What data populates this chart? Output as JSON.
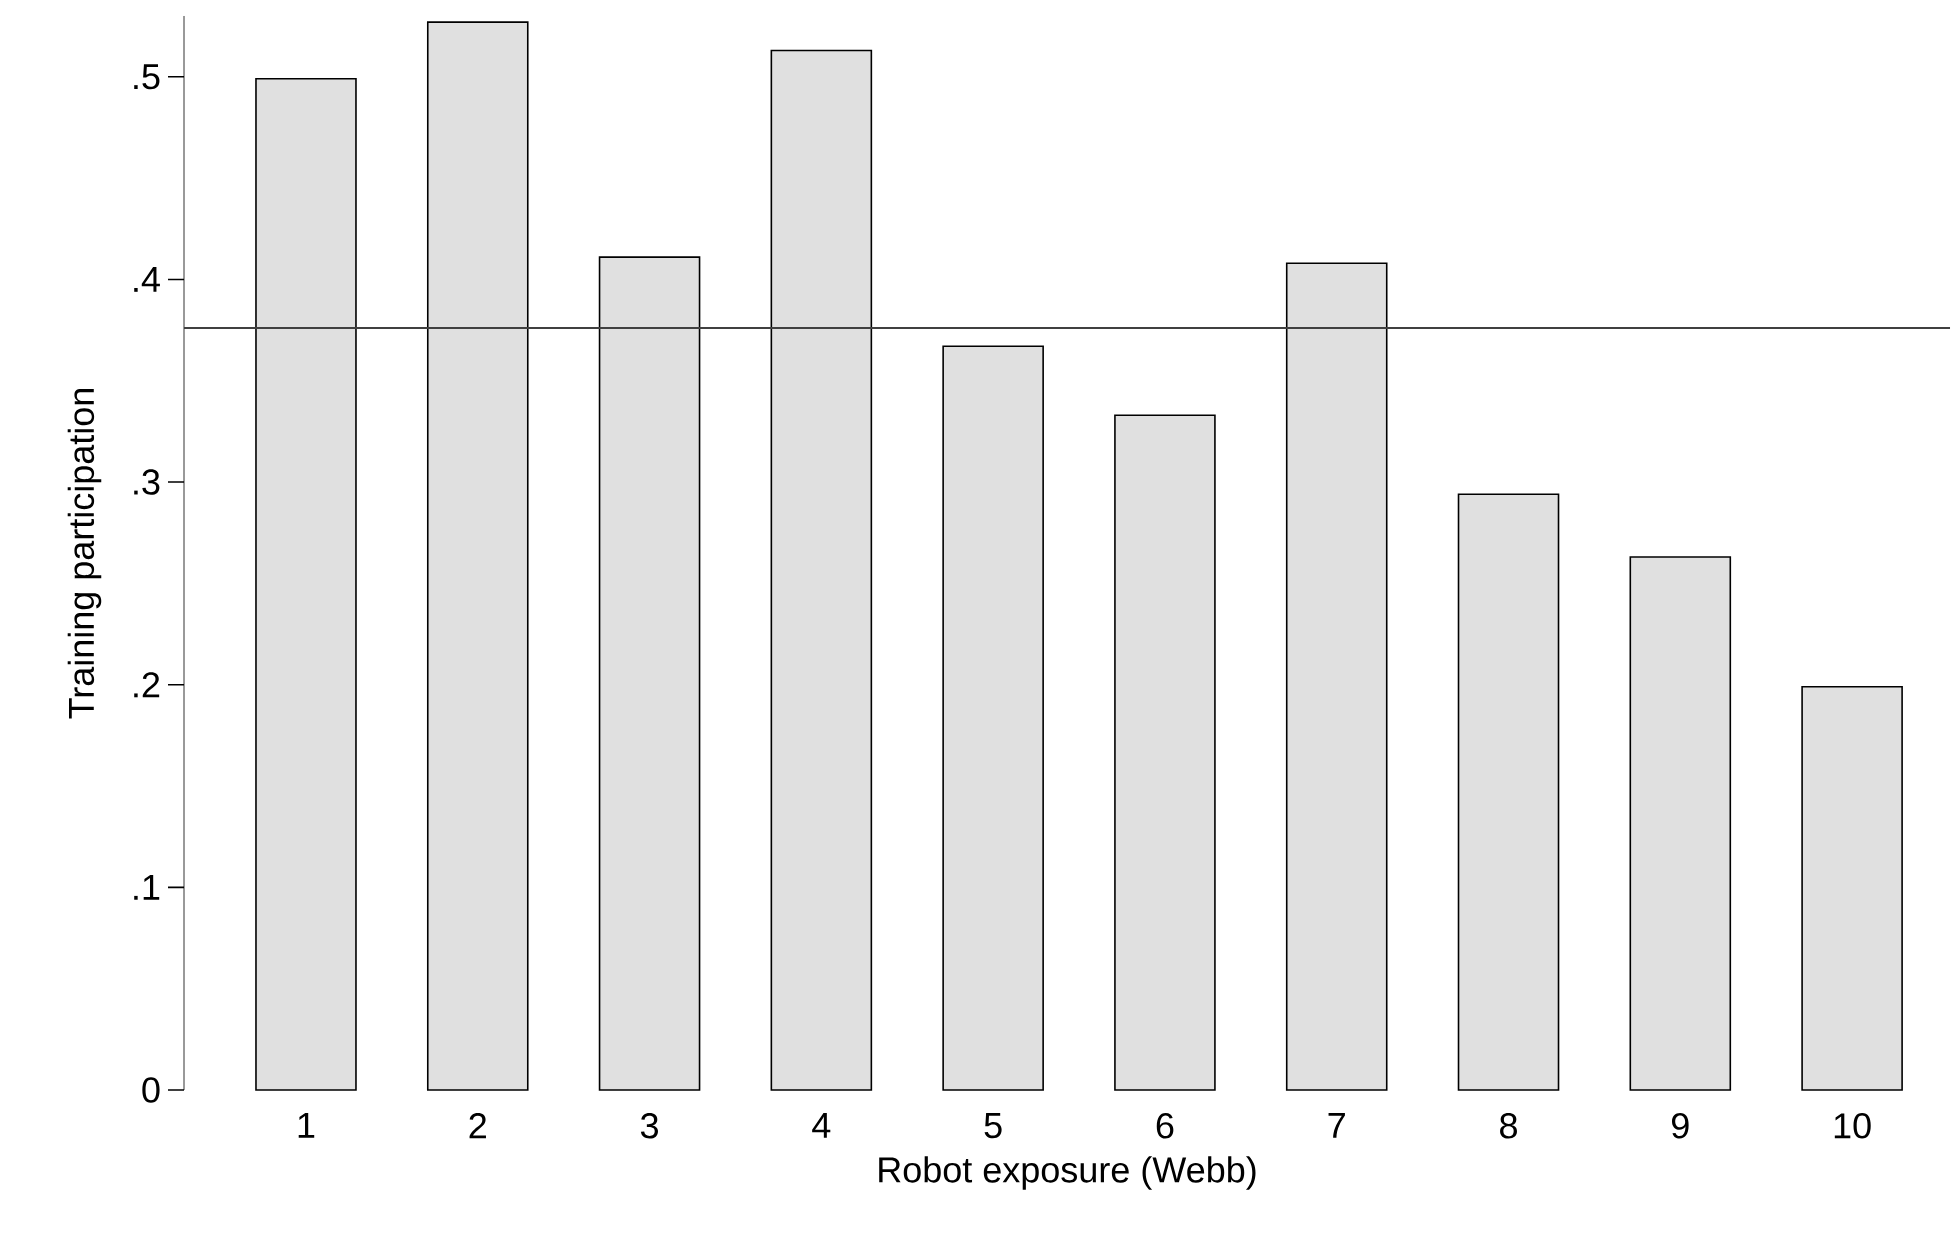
{
  "chart_data": {
    "type": "bar",
    "xlabel": "Robot exposure (Webb)",
    "ylabel": "Training participation",
    "categories": [
      "1",
      "2",
      "3",
      "4",
      "5",
      "6",
      "7",
      "8",
      "9",
      "10"
    ],
    "values": [
      0.499,
      0.527,
      0.411,
      0.513,
      0.367,
      0.333,
      0.408,
      0.294,
      0.263,
      0.199
    ],
    "color": "#e0e0e0",
    "ylim": [
      0,
      0.53
    ],
    "yticks": [
      0,
      {
        "value": 0.1,
        "label": ".1"
      },
      {
        "value": 0.2,
        "label": ".2"
      },
      {
        "value": 0.3,
        "label": ".3"
      },
      {
        "value": 0.4,
        "label": ".4"
      },
      {
        "value": 0.5,
        "label": ".5"
      }
    ],
    "ref_lines": [
      {
        "axis": "y",
        "value": 0.376,
        "color": "#404040"
      }
    ],
    "grid": false
  }
}
